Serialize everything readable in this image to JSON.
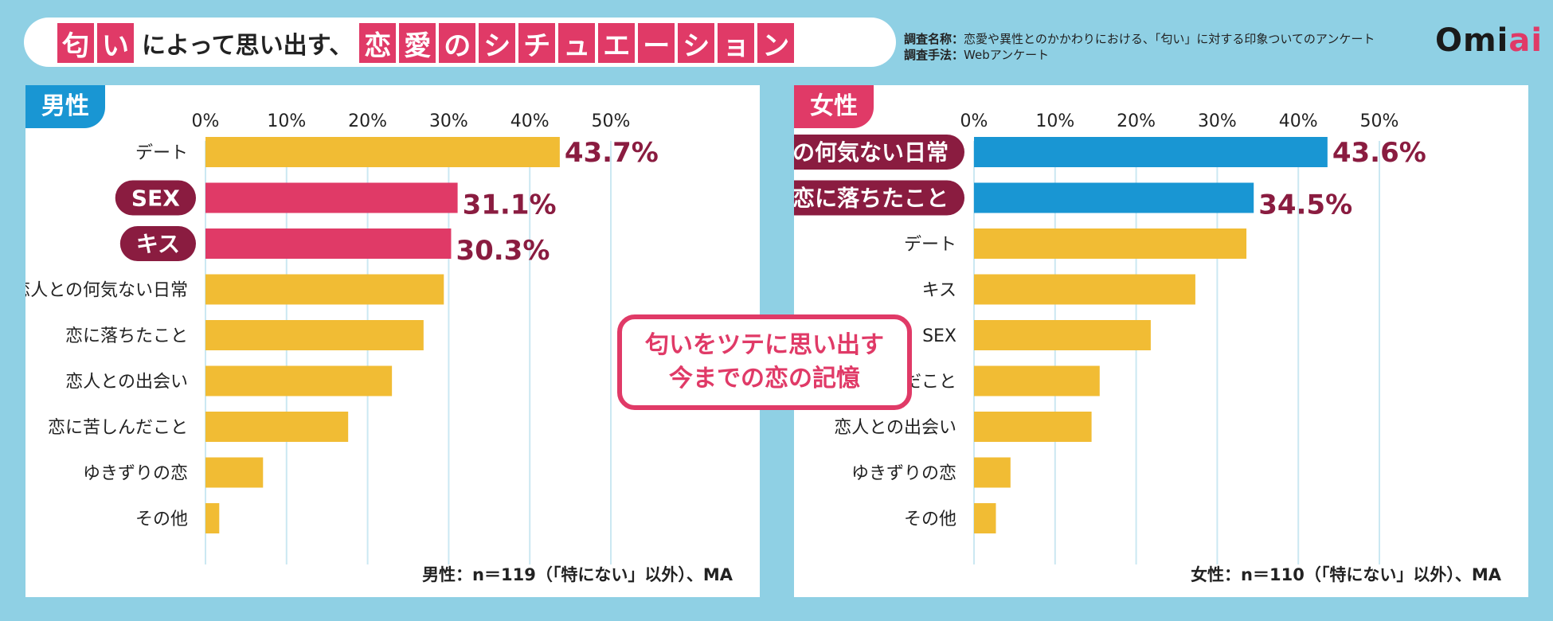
{
  "header": {
    "title_parts": [
      {
        "text": "匂",
        "boxed": true
      },
      {
        "text": "い",
        "boxed": true
      },
      {
        "text": "によって思い出す、",
        "boxed": false
      },
      {
        "text": "恋",
        "boxed": true
      },
      {
        "text": "愛",
        "boxed": true
      },
      {
        "text": "の",
        "boxed": true
      },
      {
        "text": "シ",
        "boxed": true
      },
      {
        "text": "チ",
        "boxed": true
      },
      {
        "text": "ュ",
        "boxed": true
      },
      {
        "text": "エ",
        "boxed": true
      },
      {
        "text": "ー",
        "boxed": true
      },
      {
        "text": "シ",
        "boxed": true
      },
      {
        "text": "ョ",
        "boxed": true
      },
      {
        "text": "ン",
        "boxed": true
      }
    ],
    "survey_name_label": "調査名称：",
    "survey_name": "恋愛や異性とのかかわりにおける、「匂い」に対する印象ついてのアンケート",
    "survey_method_label": "調査手法：",
    "survey_method": "Webアンケート",
    "logo_prefix": "Omi",
    "logo_accent": "ai"
  },
  "callout": {
    "line1": "匂いをツテに思い出す",
    "line2": "今までの恋の記憶"
  },
  "colors": {
    "background": "#8fd0e4",
    "pink": "#e03a67",
    "blue": "#1996d3",
    "yellow": "#f1bc34",
    "dark_label": "#8a1c40",
    "grid": "#cbe8f2"
  },
  "chart_data": [
    {
      "type": "bar",
      "orientation": "horizontal",
      "tab_label": "男性",
      "x_ticks": [
        "0%",
        "10%",
        "20%",
        "30%",
        "40%",
        "50%"
      ],
      "xlim": [
        0,
        50
      ],
      "note": "男性：n＝119（「特にない」以外）、MA",
      "categories": [
        "デート",
        "SEX",
        "キス",
        "恋人との何気ない日常",
        "恋に落ちたこと",
        "恋人との出会い",
        "恋に苦しんだこと",
        "ゆきずりの恋",
        "その他"
      ],
      "values": [
        43.7,
        31.1,
        30.3,
        29.4,
        26.9,
        23.0,
        17.6,
        7.1,
        1.7
      ],
      "value_labels": [
        "43.7%",
        "31.1%",
        "30.3%",
        "",
        "",
        "",
        "",
        "",
        ""
      ],
      "highlight": [
        false,
        true,
        true,
        false,
        false,
        false,
        false,
        false,
        false
      ],
      "highlight_color": "#e03a67",
      "base_color": "#f1bc34"
    },
    {
      "type": "bar",
      "orientation": "horizontal",
      "tab_label": "女性",
      "x_ticks": [
        "0%",
        "10%",
        "20%",
        "30%",
        "40%",
        "50%"
      ],
      "xlim": [
        0,
        50
      ],
      "note": "女性：n＝110（「特にない」以外）、MA",
      "categories": [
        "恋人との何気ない日常",
        "恋に落ちたこと",
        "デート",
        "キス",
        "SEX",
        "恋に苦しんだこと",
        "恋人との出会い",
        "ゆきずりの恋",
        "その他"
      ],
      "values": [
        43.6,
        34.5,
        33.6,
        27.3,
        21.8,
        15.5,
        14.5,
        4.5,
        2.7
      ],
      "value_labels": [
        "43.6%",
        "34.5%",
        "",
        "",
        "",
        "",
        "",
        "",
        ""
      ],
      "highlight": [
        true,
        true,
        false,
        false,
        false,
        false,
        false,
        false,
        false
      ],
      "highlight_color": "#1996d3",
      "base_color": "#f1bc34"
    }
  ]
}
